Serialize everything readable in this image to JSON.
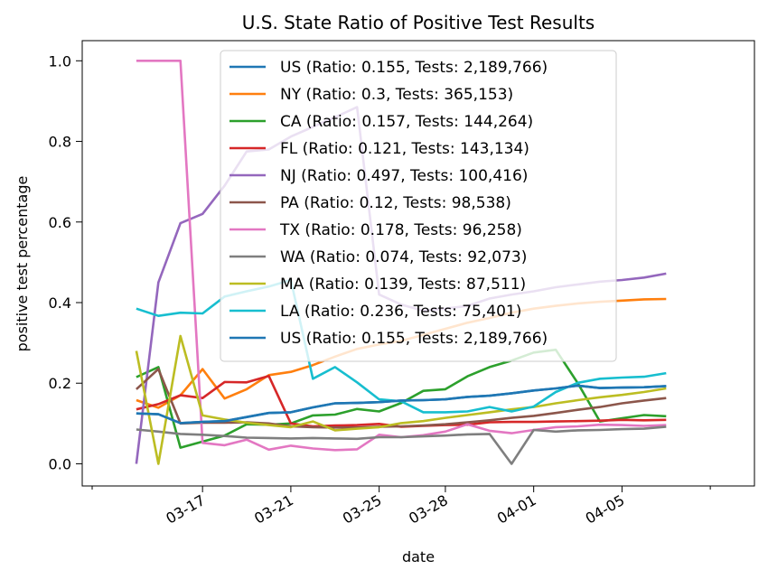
{
  "chart_data": {
    "type": "line",
    "title": "U.S. State Ratio of Positive Test Results",
    "xlabel": "date",
    "ylabel": "positive test percentage",
    "x": [
      "03-14",
      "03-15",
      "03-16",
      "03-17",
      "03-18",
      "03-19",
      "03-20",
      "03-21",
      "03-22",
      "03-23",
      "03-24",
      "03-25",
      "03-26",
      "03-27",
      "03-28",
      "03-29",
      "03-30",
      "03-31",
      "04-01",
      "04-02",
      "04-03",
      "04-04",
      "04-05",
      "04-06",
      "04-07"
    ],
    "xticks": [
      "03-17",
      "03-21",
      "03-25",
      "03-28",
      "04-01",
      "04-05"
    ],
    "yticks": [
      "0.0",
      "0.2",
      "0.4",
      "0.6",
      "0.8",
      "1.0"
    ],
    "ylim": [
      -0.055,
      1.05
    ],
    "grid": false,
    "legend_position": "upper center",
    "series": [
      {
        "name": "US (Ratio: 0.155, Tests: 2,189,766)",
        "color": "#1f77b4",
        "values": [
          0.125,
          0.123,
          0.101,
          0.104,
          0.106,
          0.116,
          0.126,
          0.128,
          0.14,
          0.15,
          0.151,
          0.153,
          0.157,
          0.158,
          0.16,
          0.166,
          0.169,
          0.175,
          0.182,
          0.187,
          0.194,
          0.188,
          0.189,
          0.19,
          0.193
        ]
      },
      {
        "name": "NY (Ratio: 0.3, Tests: 365,153)",
        "color": "#ff7f0e",
        "values": [
          0.158,
          0.139,
          0.17,
          0.235,
          0.162,
          0.185,
          0.22,
          0.228,
          0.245,
          0.266,
          0.285,
          0.296,
          0.305,
          0.32,
          0.335,
          0.35,
          0.362,
          0.375,
          0.385,
          0.392,
          0.398,
          0.402,
          0.405,
          0.408,
          0.409
        ]
      },
      {
        "name": "CA (Ratio: 0.157, Tests: 144,264)",
        "color": "#2ca02c",
        "values": [
          0.215,
          0.24,
          0.04,
          0.055,
          0.07,
          0.098,
          0.097,
          0.1,
          0.12,
          0.122,
          0.136,
          0.13,
          0.151,
          0.181,
          0.185,
          0.217,
          0.24,
          0.256,
          0.276,
          0.283,
          0.2,
          0.105,
          0.113,
          0.121,
          0.118
        ]
      },
      {
        "name": "FL (Ratio: 0.121, Tests: 143,134)",
        "color": "#d62728",
        "values": [
          0.135,
          0.148,
          0.17,
          0.163,
          0.203,
          0.202,
          0.218,
          0.1,
          0.093,
          0.095,
          0.096,
          0.099,
          0.092,
          0.094,
          0.096,
          0.097,
          0.103,
          0.104,
          0.104,
          0.105,
          0.106,
          0.107,
          0.109,
          0.108,
          0.109
        ]
      },
      {
        "name": "NJ (Ratio: 0.497, Tests: 100,416)",
        "color": "#9467bd",
        "values": [
          0.0,
          0.45,
          0.597,
          0.62,
          0.69,
          0.775,
          0.78,
          0.812,
          0.836,
          0.86,
          0.885,
          0.42,
          0.395,
          0.38,
          0.385,
          0.392,
          0.41,
          0.42,
          0.428,
          0.438,
          0.445,
          0.452,
          0.456,
          0.462,
          0.472
        ]
      },
      {
        "name": "PA (Ratio: 0.12, Tests: 98,538)",
        "color": "#8c564b",
        "values": [
          0.185,
          0.235,
          0.1,
          0.102,
          0.102,
          0.103,
          0.1,
          0.093,
          0.091,
          0.09,
          0.09,
          0.092,
          0.093,
          0.095,
          0.098,
          0.103,
          0.108,
          0.114,
          0.119,
          0.126,
          0.134,
          0.141,
          0.15,
          0.157,
          0.163
        ]
      },
      {
        "name": "TX (Ratio: 0.178, Tests: 96,258)",
        "color": "#e377c2",
        "values": [
          1.0,
          1.0,
          1.0,
          0.052,
          0.046,
          0.06,
          0.035,
          0.045,
          0.038,
          0.034,
          0.036,
          0.072,
          0.066,
          0.071,
          0.08,
          0.098,
          0.082,
          0.076,
          0.084,
          0.091,
          0.093,
          0.097,
          0.096,
          0.094,
          0.096
        ]
      },
      {
        "name": "WA (Ratio: 0.074, Tests: 92,073)",
        "color": "#7f7f7f",
        "values": [
          0.085,
          0.08,
          0.074,
          0.072,
          0.069,
          0.065,
          0.064,
          0.063,
          0.064,
          0.063,
          0.062,
          0.066,
          0.066,
          0.068,
          0.07,
          0.073,
          0.074,
          0.0,
          0.084,
          0.08,
          0.083,
          0.084,
          0.086,
          0.087,
          0.092
        ]
      },
      {
        "name": "MA (Ratio: 0.139, Tests: 87,511)",
        "color": "#bcbd22",
        "values": [
          0.28,
          0.0,
          0.317,
          0.12,
          0.11,
          0.102,
          0.096,
          0.091,
          0.105,
          0.083,
          0.087,
          0.091,
          0.101,
          0.106,
          0.114,
          0.121,
          0.128,
          0.135,
          0.141,
          0.15,
          0.158,
          0.165,
          0.171,
          0.178,
          0.187
        ]
      },
      {
        "name": "LA (Ratio: 0.236, Tests: 75,401)",
        "color": "#17becf",
        "values": [
          0.385,
          0.367,
          0.375,
          0.373,
          0.415,
          0.428,
          0.44,
          0.456,
          0.211,
          0.24,
          0.202,
          0.16,
          0.155,
          0.128,
          0.128,
          0.13,
          0.141,
          0.13,
          0.142,
          0.178,
          0.201,
          0.211,
          0.214,
          0.216,
          0.225
        ]
      },
      {
        "name": "US (Ratio: 0.155, Tests: 2,189,766)",
        "color": "#1f77b4",
        "values": [
          0.125,
          0.123,
          0.101,
          0.104,
          0.106,
          0.116,
          0.126,
          0.128,
          0.14,
          0.15,
          0.151,
          0.153,
          0.157,
          0.158,
          0.16,
          0.166,
          0.169,
          0.175,
          0.182,
          0.187,
          0.194,
          0.188,
          0.189,
          0.19,
          0.193
        ]
      }
    ]
  }
}
